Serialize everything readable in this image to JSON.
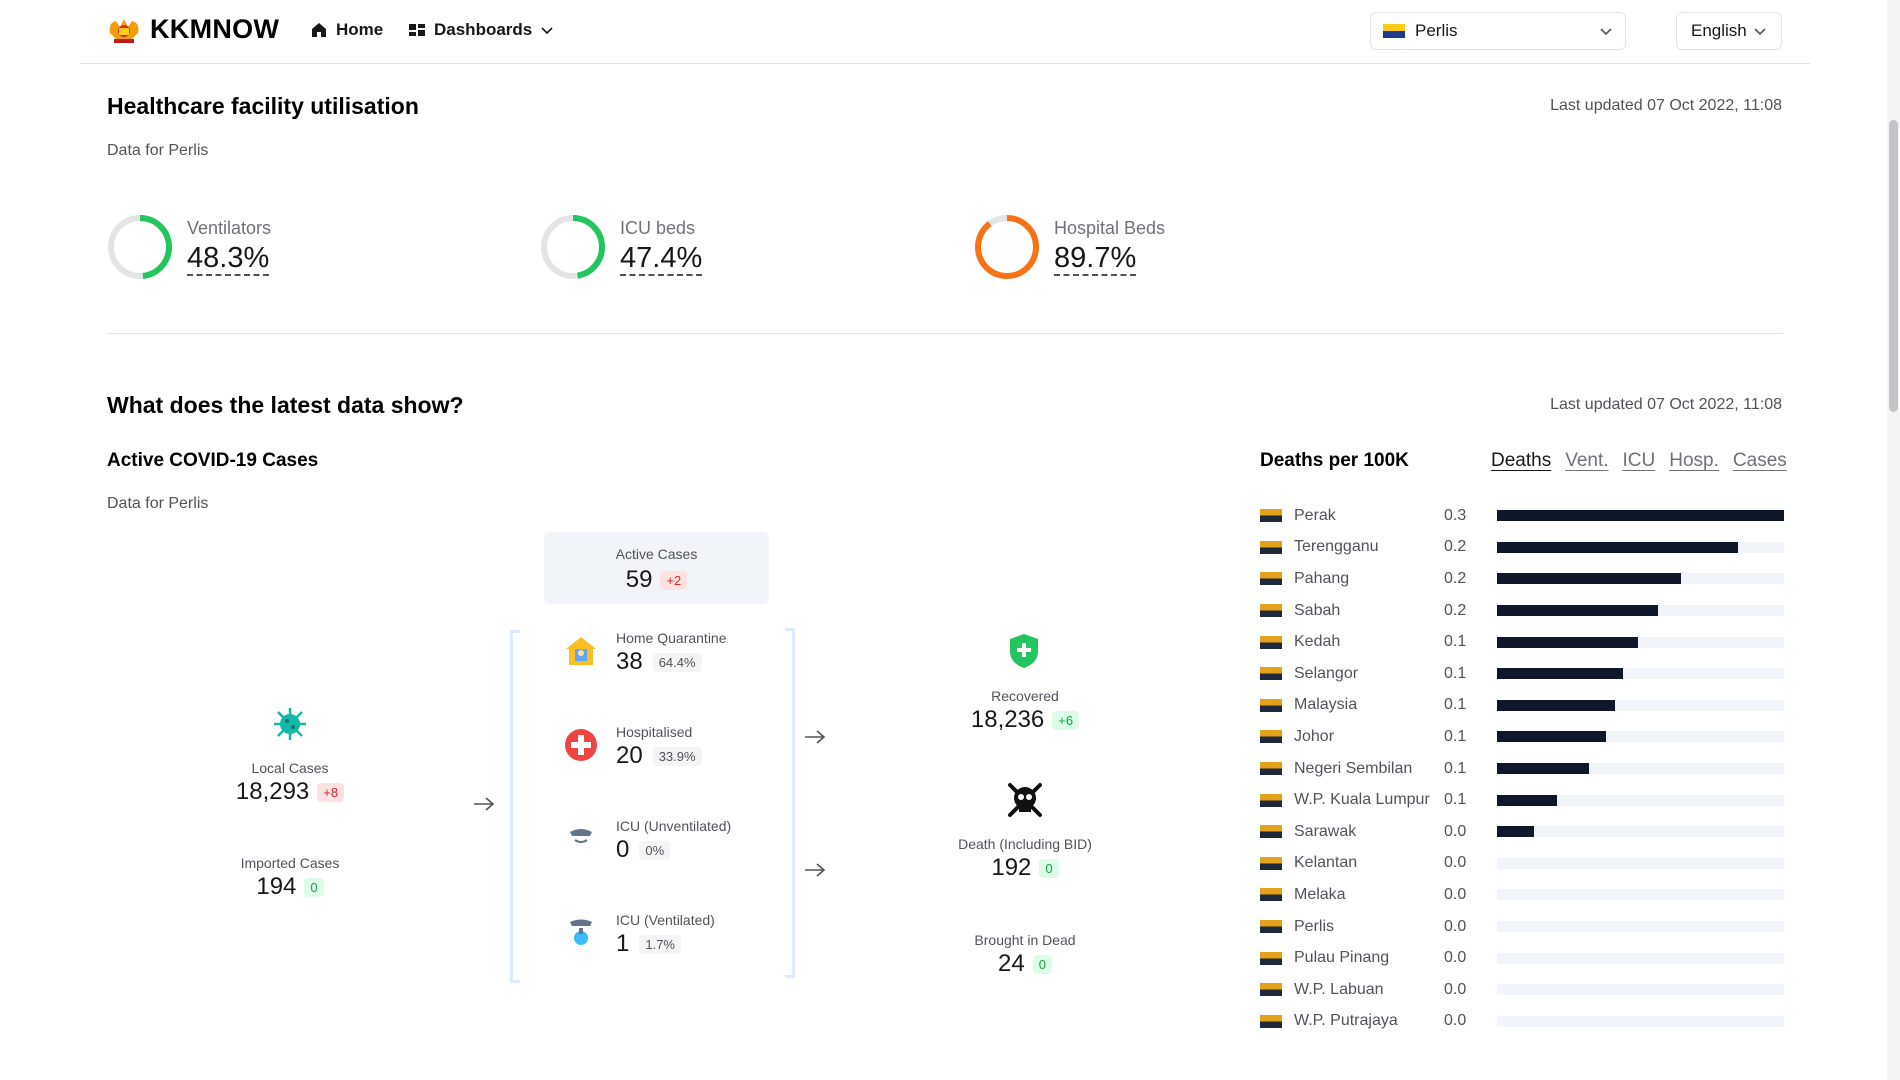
{
  "nav": {
    "brand": "KKMNOW",
    "home": "Home",
    "dashboards": "Dashboards",
    "state": "Perlis",
    "language": "English"
  },
  "utilisation": {
    "title": "Healthcare facility utilisation",
    "updated": "Last updated 07 Oct 2022, 11:08",
    "subtitle": "Data for Perlis",
    "items": [
      {
        "label": "Ventilators",
        "value": "48.3%",
        "pct": 48.3,
        "color": "#22c55e"
      },
      {
        "label": "ICU beds",
        "value": "47.4%",
        "pct": 47.4,
        "color": "#22c55e"
      },
      {
        "label": "Hospital Beds",
        "value": "89.7%",
        "pct": 89.7,
        "color": "#f97316"
      }
    ]
  },
  "latest": {
    "title": "What does the latest data show?",
    "updated": "Last updated 07 Oct 2022, 11:08",
    "cases_title": "Active COVID-19 Cases",
    "subtitle": "Data for Perlis",
    "local": {
      "label": "Local Cases",
      "value": "18,293",
      "delta": "+8"
    },
    "imported": {
      "label": "Imported Cases",
      "value": "194",
      "delta": "0"
    },
    "active": {
      "label": "Active Cases",
      "value": "59",
      "delta": "+2"
    },
    "home_q": {
      "label": "Home Quarantine",
      "value": "38",
      "pct": "64.4%"
    },
    "hospitalised": {
      "label": "Hospitalised",
      "value": "20",
      "pct": "33.9%"
    },
    "icu_unvent": {
      "label": "ICU (Unventilated)",
      "value": "0",
      "pct": "0%"
    },
    "icu_vent": {
      "label": "ICU (Ventilated)",
      "value": "1",
      "pct": "1.7%"
    },
    "recovered": {
      "label": "Recovered",
      "value": "18,236",
      "delta": "+6"
    },
    "death": {
      "label": "Death (Including BID)",
      "value": "192",
      "delta": "0"
    },
    "bid": {
      "label": "Brought in Dead",
      "value": "24",
      "delta": "0"
    }
  },
  "deaths": {
    "title": "Deaths per 100K",
    "tabs": [
      "Deaths",
      "Vent.",
      "ICU",
      "Hosp.",
      "Cases"
    ],
    "active_tab": "Deaths",
    "rows": [
      {
        "name": "Perak",
        "value": "0.3",
        "frac": 1.0
      },
      {
        "name": "Terengganu",
        "value": "0.2",
        "frac": 0.84
      },
      {
        "name": "Pahang",
        "value": "0.2",
        "frac": 0.64
      },
      {
        "name": "Sabah",
        "value": "0.2",
        "frac": 0.56
      },
      {
        "name": "Kedah",
        "value": "0.1",
        "frac": 0.49
      },
      {
        "name": "Selangor",
        "value": "0.1",
        "frac": 0.44
      },
      {
        "name": "Malaysia",
        "value": "0.1",
        "frac": 0.41
      },
      {
        "name": "Johor",
        "value": "0.1",
        "frac": 0.38
      },
      {
        "name": "Negeri Sembilan",
        "value": "0.1",
        "frac": 0.32
      },
      {
        "name": "W.P. Kuala Lumpur",
        "value": "0.1",
        "frac": 0.21
      },
      {
        "name": "Sarawak",
        "value": "0.0",
        "frac": 0.13
      },
      {
        "name": "Kelantan",
        "value": "0.0",
        "frac": 0
      },
      {
        "name": "Melaka",
        "value": "0.0",
        "frac": 0
      },
      {
        "name": "Perlis",
        "value": "0.0",
        "frac": 0
      },
      {
        "name": "Pulau Pinang",
        "value": "0.0",
        "frac": 0
      },
      {
        "name": "W.P. Labuan",
        "value": "0.0",
        "frac": 0
      },
      {
        "name": "W.P. Putrajaya",
        "value": "0.0",
        "frac": 0
      }
    ]
  }
}
